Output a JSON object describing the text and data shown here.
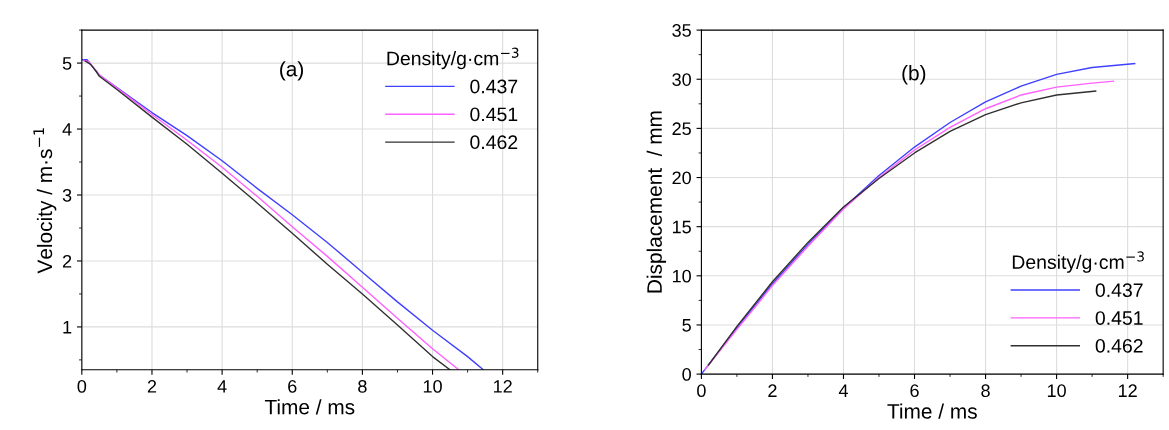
{
  "chart_data": [
    {
      "type": "line",
      "xlabel": "Time / ms",
      "ylabel": "Velocity / m·s$^{−1}$",
      "legend_title": "Density/g·cm$^{−3}$",
      "annotations": [
        "(a)"
      ],
      "xlim": [
        0,
        13
      ],
      "ylim": [
        0.35,
        5.5
      ],
      "xticks": [
        0,
        2,
        4,
        6,
        8,
        10,
        12
      ],
      "yticks": [
        1,
        2,
        3,
        4,
        5
      ],
      "grid": true,
      "legend": "top right",
      "series": [
        {
          "name": "0.437",
          "color": "#4040ff",
          "x": [
            0,
            0.15,
            0.3,
            0.5,
            1,
            2,
            3,
            4,
            5,
            6,
            7,
            8,
            9,
            10,
            11,
            11.45
          ],
          "values": [
            5.05,
            5.05,
            4.95,
            4.82,
            4.63,
            4.25,
            3.9,
            3.52,
            3.1,
            2.7,
            2.28,
            1.83,
            1.38,
            0.95,
            0.55,
            0.35
          ]
        },
        {
          "name": "0.451",
          "color": "#ff60ff",
          "x": [
            0.05,
            0.2,
            0.35,
            0.5,
            1,
            2,
            3,
            4,
            5,
            6,
            7,
            8,
            9,
            10,
            10.75
          ],
          "values": [
            5.04,
            5.02,
            4.92,
            4.82,
            4.62,
            4.22,
            3.83,
            3.42,
            2.98,
            2.52,
            2.07,
            1.6,
            1.13,
            0.67,
            0.35
          ]
        },
        {
          "name": "0.462",
          "color": "#303030",
          "x": [
            0.1,
            0.25,
            0.4,
            0.5,
            1,
            2,
            3,
            4,
            5,
            6,
            7,
            8,
            9,
            10,
            10.5
          ],
          "values": [
            5.03,
            4.98,
            4.88,
            4.8,
            4.6,
            4.18,
            3.77,
            3.33,
            2.88,
            2.42,
            1.95,
            1.5,
            1.03,
            0.55,
            0.35
          ]
        }
      ]
    },
    {
      "type": "line",
      "xlabel": "Time / ms",
      "ylabel": "Displacement  / mm",
      "legend_title": "Density/g·cm$^{−3}$",
      "annotations": [
        "(b)"
      ],
      "xlim": [
        0,
        13
      ],
      "ylim": [
        0,
        35
      ],
      "xticks": [
        0,
        2,
        4,
        6,
        8,
        10,
        12
      ],
      "yticks": [
        0,
        5,
        10,
        15,
        20,
        25,
        30,
        35
      ],
      "grid": true,
      "legend": "bottom right",
      "series": [
        {
          "name": "0.437",
          "color": "#4040ff",
          "x": [
            0,
            1,
            2,
            3,
            4,
            5,
            6,
            7,
            8,
            9,
            10,
            11,
            12.2
          ],
          "values": [
            0,
            4.7,
            9.2,
            13.2,
            16.9,
            20.2,
            23.1,
            25.6,
            27.7,
            29.3,
            30.5,
            31.2,
            31.6
          ]
        },
        {
          "name": "0.451",
          "color": "#ff60ff",
          "x": [
            0.1,
            1,
            2,
            3,
            4,
            5,
            6,
            7,
            8,
            9,
            10,
            11,
            11.6
          ],
          "values": [
            0.47,
            4.55,
            9.0,
            13.0,
            16.8,
            20.0,
            22.8,
            25.1,
            27.0,
            28.4,
            29.2,
            29.6,
            29.8
          ]
        },
        {
          "name": "0.462",
          "color": "#303030",
          "x": [
            0.2,
            1,
            2,
            3,
            4,
            5,
            6,
            7,
            8,
            9,
            10,
            11.1
          ],
          "values": [
            0.93,
            4.85,
            9.4,
            13.4,
            17.0,
            19.9,
            22.5,
            24.7,
            26.4,
            27.6,
            28.4,
            28.8
          ]
        }
      ]
    }
  ]
}
